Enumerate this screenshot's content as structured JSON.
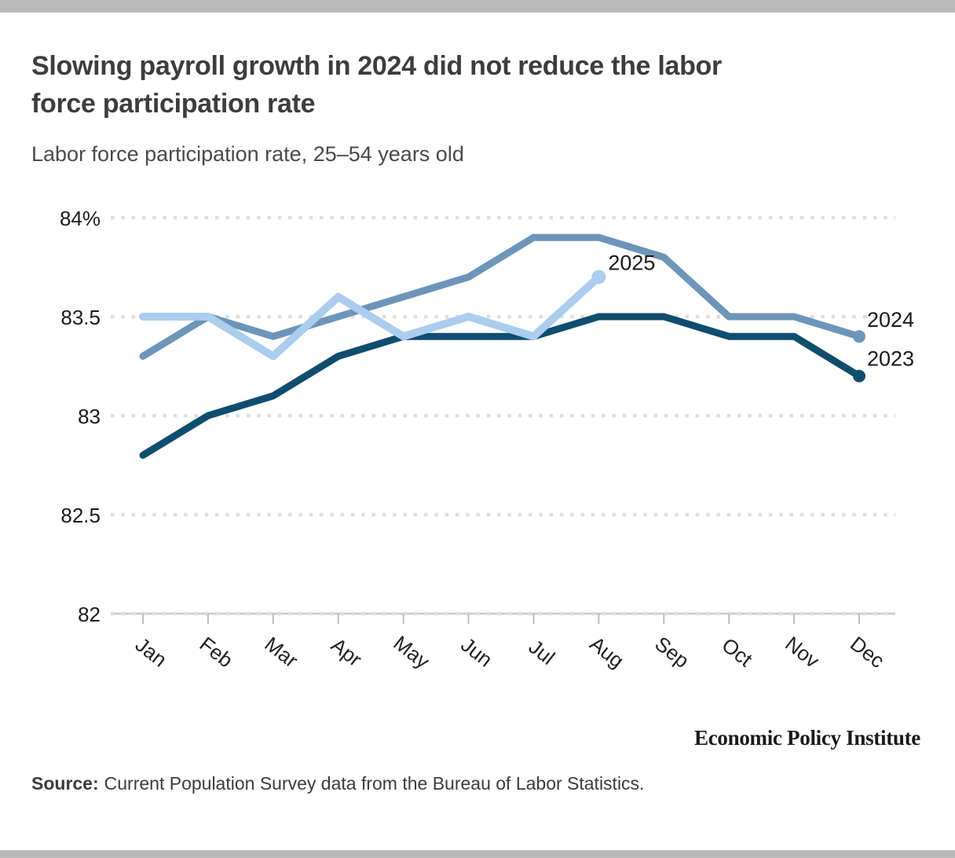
{
  "page": {
    "top_bar_color": "#bababa",
    "bottom_bar_color": "#bababa",
    "background": "#ffffff"
  },
  "header": {
    "title": "Slowing payroll growth in 2024 did not reduce the labor force participation rate",
    "title_lines": [
      "Slowing payroll growth in 2024 did not reduce the labor",
      "force participation rate"
    ],
    "subtitle": "Labor force participation rate, 25–54 years old"
  },
  "chart_data": {
    "type": "line",
    "title": "Slowing payroll growth in 2024 did not reduce the labor force participation rate",
    "subtitle": "Labor force participation rate, 25–54 years old",
    "categories": [
      "Jan",
      "Feb",
      "Mar",
      "Apr",
      "May",
      "Jun",
      "Jul",
      "Aug",
      "Sep",
      "Oct",
      "Nov",
      "Dec"
    ],
    "series": [
      {
        "name": "2023",
        "color": "#0f4d6e",
        "values": [
          82.8,
          83.0,
          83.1,
          83.3,
          83.4,
          83.4,
          83.4,
          83.5,
          83.5,
          83.4,
          83.4,
          83.2
        ]
      },
      {
        "name": "2024",
        "color": "#6d95b9",
        "values": [
          83.3,
          83.5,
          83.4,
          83.5,
          83.6,
          83.7,
          83.9,
          83.9,
          83.8,
          83.5,
          83.5,
          83.4
        ]
      },
      {
        "name": "2025",
        "color": "#abcdee",
        "values": [
          83.5,
          83.5,
          83.3,
          83.6,
          83.4,
          83.5,
          83.4,
          83.7
        ]
      }
    ],
    "ylim": [
      82,
      84
    ],
    "yticks": [
      {
        "value": 84,
        "label": "84%"
      },
      {
        "value": 83.5,
        "label": "83.5"
      },
      {
        "value": 83,
        "label": "83"
      },
      {
        "value": 82.5,
        "label": "82.5"
      },
      {
        "value": 82,
        "label": "82"
      }
    ],
    "xlabel": "",
    "ylabel": "",
    "grid": "horizontal-dotted",
    "legend_position": "end-of-line-labels"
  },
  "footer": {
    "brand": "Economic Policy Institute",
    "source_label": "Source:",
    "source_text": "Current Population Survey data from the Bureau of Labor Statistics."
  }
}
